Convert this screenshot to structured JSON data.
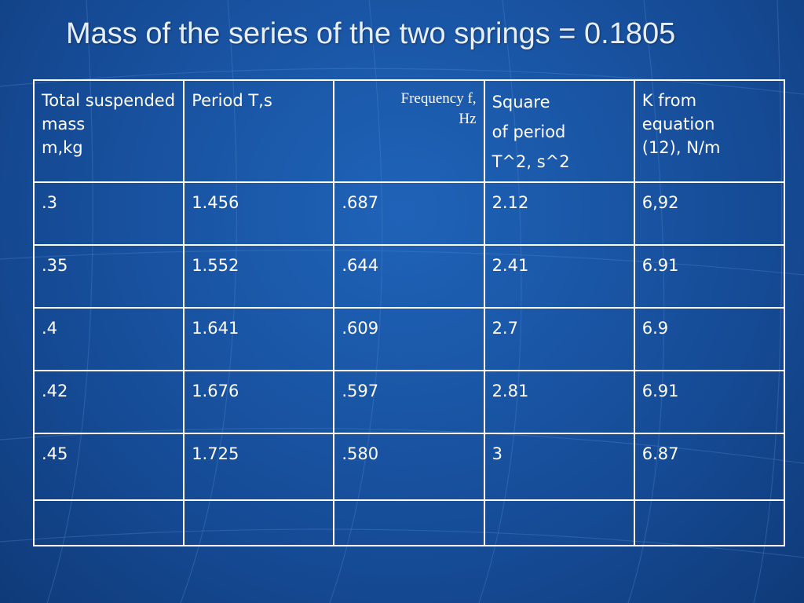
{
  "title": "Mass of the series of the two springs = 0.1805",
  "table": {
    "headers": [
      "Total suspended mass m,kg",
      "Period T,s",
      "Frequency f, Hz",
      "Square of period T^2, s^2",
      "K from equation (12), N/m"
    ],
    "header_lines": {
      "freq": [
        "Frequency f,",
        "Hz"
      ],
      "square": [
        "Square",
        "of period",
        "T^2, s^2"
      ],
      "k": [
        "K from",
        "equation",
        "(12), N/m"
      ],
      "mass": [
        "Total suspended mass",
        "m,kg"
      ]
    },
    "rows": [
      [
        ".3",
        "1.456",
        ".687",
        "2.12",
        "6,92"
      ],
      [
        ".35",
        "1.552",
        ".644",
        "2.41",
        "6.91"
      ],
      [
        ".4",
        "1.641",
        ".609",
        "2.7",
        "6.9"
      ],
      [
        ".42",
        "1.676",
        ".597",
        "2.81",
        "6.91"
      ],
      [
        ".45",
        "1.725",
        ".580",
        "3",
        "6.87"
      ],
      [
        "",
        "",
        "",
        "",
        ""
      ]
    ]
  },
  "colors": {
    "background": "#1a56a6",
    "grid_lines": "#ffffff",
    "text": "#ffffff"
  }
}
